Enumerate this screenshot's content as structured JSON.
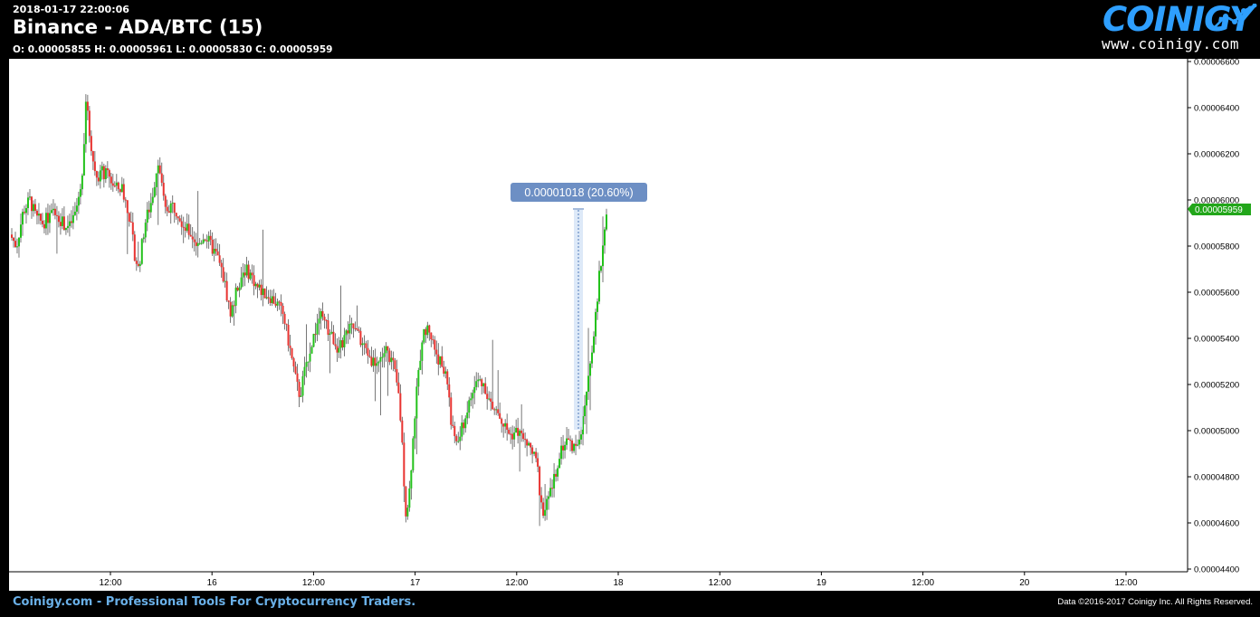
{
  "header": {
    "timestamp": "2018-01-17 22:00:06",
    "title": "Binance - ADA/BTC (15)",
    "ohlc": "O: 0.00005855 H: 0.00005961 L: 0.00005830 C: 0.00005959"
  },
  "brand": {
    "name": "COINIGY",
    "url": "www.coinigy.com"
  },
  "footer": {
    "tagline": "Coinigy.com - Professional Tools For Cryptocurrency Traders.",
    "copyright": "Data ©2016-2017 Coinigy Inc. All Rights Reserved."
  },
  "colors": {
    "background": "#000000",
    "plot_background": "#ffffff",
    "up_candle": "#22c11a",
    "down_candle": "#e8322f",
    "wick": "#555555",
    "measure_label_bg": "#6d8fc4",
    "price_tag_bg": "#22a61a",
    "brand_blue": "#2e9fff",
    "footer_text": "#6ab0e8"
  },
  "chart_data": {
    "type": "candlestick",
    "title": "Binance - ADA/BTC (15)",
    "xlabel": "",
    "ylabel": "",
    "ylim": [
      4.4e-06,
      6.6e-06
    ],
    "y_ticks": [
      "0.00004400",
      "0.00004600",
      "0.00004800",
      "0.00005000",
      "0.00005200",
      "0.00005400",
      "0.00005600",
      "0.00005800",
      "0.00006000",
      "0.00006200",
      "0.00006400",
      "0.00006600"
    ],
    "x_ticks": [
      "12:00",
      "16",
      "12:00",
      "17",
      "12:00",
      "18",
      "12:00",
      "19",
      "12:00",
      "20",
      "12:00"
    ],
    "grid": false,
    "last_price": "0.00005959",
    "measure_annotation": "0.00001018 (20.60%)",
    "price_path_approx": [
      [
        0,
        5.85
      ],
      [
        2,
        5.8
      ],
      [
        4,
        5.95
      ],
      [
        6,
        6.0
      ],
      [
        8,
        5.92
      ],
      [
        10,
        5.9
      ],
      [
        12,
        5.93
      ],
      [
        14,
        5.95
      ],
      [
        16,
        5.9
      ],
      [
        18,
        5.88
      ],
      [
        20,
        5.95
      ],
      [
        22,
        6.1
      ],
      [
        23,
        6.45
      ],
      [
        24,
        6.3
      ],
      [
        26,
        6.1
      ],
      [
        28,
        6.12
      ],
      [
        30,
        6.1
      ],
      [
        32,
        6.05
      ],
      [
        34,
        6.05
      ],
      [
        36,
        5.95
      ],
      [
        38,
        5.75
      ],
      [
        39,
        5.7
      ],
      [
        41,
        5.9
      ],
      [
        43,
        6.0
      ],
      [
        45,
        6.18
      ],
      [
        47,
        5.95
      ],
      [
        49,
        5.98
      ],
      [
        51,
        5.95
      ],
      [
        53,
        5.88
      ],
      [
        55,
        5.85
      ],
      [
        57,
        5.8
      ],
      [
        59,
        5.85
      ],
      [
        61,
        5.8
      ],
      [
        63,
        5.75
      ],
      [
        65,
        5.65
      ],
      [
        67,
        5.5
      ],
      [
        69,
        5.62
      ],
      [
        71,
        5.7
      ],
      [
        73,
        5.68
      ],
      [
        75,
        5.62
      ],
      [
        77,
        5.6
      ],
      [
        79,
        5.58
      ],
      [
        81,
        5.55
      ],
      [
        83,
        5.5
      ],
      [
        85,
        5.35
      ],
      [
        87,
        5.2
      ],
      [
        88,
        5.15
      ],
      [
        90,
        5.3
      ],
      [
        92,
        5.4
      ],
      [
        94,
        5.5
      ],
      [
        96,
        5.45
      ],
      [
        98,
        5.4
      ],
      [
        100,
        5.35
      ],
      [
        102,
        5.42
      ],
      [
        104,
        5.45
      ],
      [
        106,
        5.4
      ],
      [
        108,
        5.35
      ],
      [
        110,
        5.3
      ],
      [
        112,
        5.3
      ],
      [
        114,
        5.35
      ],
      [
        116,
        5.3
      ],
      [
        118,
        5.15
      ],
      [
        119,
        4.95
      ],
      [
        120,
        4.65
      ],
      [
        121,
        4.7
      ],
      [
        123,
        5.1
      ],
      [
        125,
        5.4
      ],
      [
        127,
        5.45
      ],
      [
        129,
        5.35
      ],
      [
        131,
        5.28
      ],
      [
        133,
        5.2
      ],
      [
        134,
        5.0
      ],
      [
        136,
        4.95
      ],
      [
        138,
        5.05
      ],
      [
        140,
        5.15
      ],
      [
        142,
        5.22
      ],
      [
        144,
        5.2
      ],
      [
        146,
        5.1
      ],
      [
        148,
        5.08
      ],
      [
        150,
        5.02
      ],
      [
        152,
        4.98
      ],
      [
        154,
        5.0
      ],
      [
        156,
        4.95
      ],
      [
        158,
        4.92
      ],
      [
        160,
        4.85
      ],
      [
        161,
        4.7
      ],
      [
        162,
        4.65
      ],
      [
        163,
        4.68
      ],
      [
        165,
        4.78
      ],
      [
        167,
        4.92
      ],
      [
        169,
        4.96
      ],
      [
        171,
        4.93
      ],
      [
        173,
        4.98
      ],
      [
        174,
        5.05
      ],
      [
        176,
        5.3
      ],
      [
        177,
        5.4
      ],
      [
        178,
        5.52
      ],
      [
        179,
        5.7
      ],
      [
        180,
        5.8
      ],
      [
        181,
        5.96
      ]
    ]
  }
}
